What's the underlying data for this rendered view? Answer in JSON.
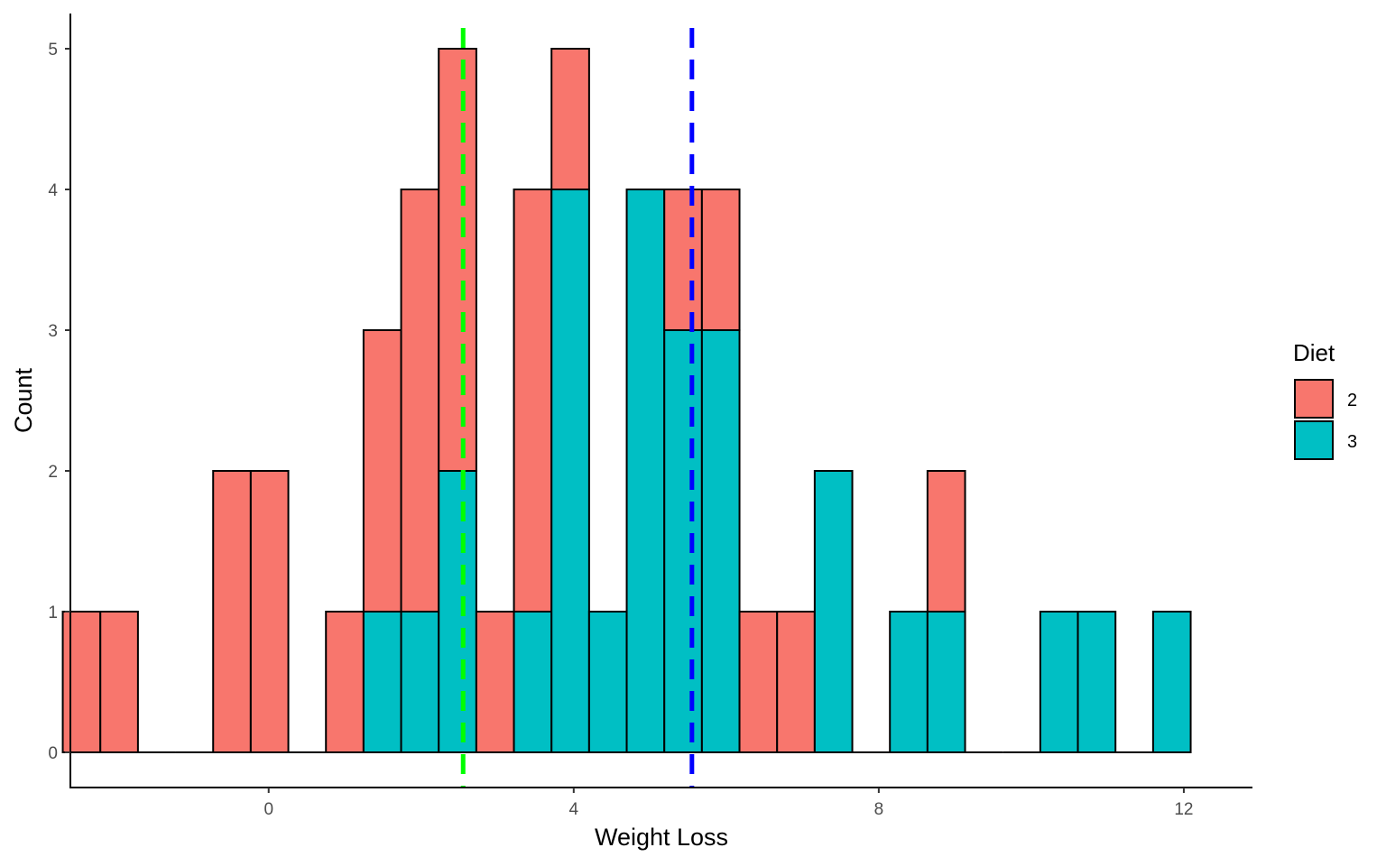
{
  "chart_data": {
    "type": "bar",
    "subtype": "stacked-histogram",
    "xlabel": "Weight Loss",
    "ylabel": "Count",
    "xlim": [
      -2.6,
      12.9
    ],
    "ylim": [
      -0.25,
      5.25
    ],
    "x_ticks": [
      0,
      4,
      8,
      12
    ],
    "y_ticks": [
      0,
      1,
      2,
      3,
      4,
      5
    ],
    "bin_width": 0.493,
    "bins_start": -2.7,
    "grid": false,
    "legend": {
      "title": "Diet",
      "position": "right",
      "entries": [
        {
          "label": "2",
          "color": "#F8766D"
        },
        {
          "label": "3",
          "color": "#00BFC4"
        }
      ]
    },
    "series": [
      {
        "name": "2",
        "color": "#F8766D",
        "values": [
          1,
          1,
          0,
          0,
          2,
          2,
          0,
          1,
          2,
          3,
          3,
          1,
          3,
          1,
          0,
          0,
          1,
          1,
          1,
          1,
          0,
          0,
          0,
          1,
          0,
          0,
          0,
          0,
          0,
          0
        ]
      },
      {
        "name": "3",
        "color": "#00BFC4",
        "values": [
          0,
          0,
          0,
          0,
          0,
          0,
          0,
          0,
          1,
          1,
          2,
          0,
          1,
          4,
          1,
          4,
          3,
          3,
          0,
          0,
          2,
          0,
          1,
          1,
          0,
          0,
          1,
          1,
          0,
          1
        ]
      }
    ],
    "reference_lines": [
      {
        "x": 2.55,
        "color": "#00FF00",
        "style": "dashed"
      },
      {
        "x": 5.55,
        "color": "#0000FF",
        "style": "dashed"
      }
    ]
  }
}
